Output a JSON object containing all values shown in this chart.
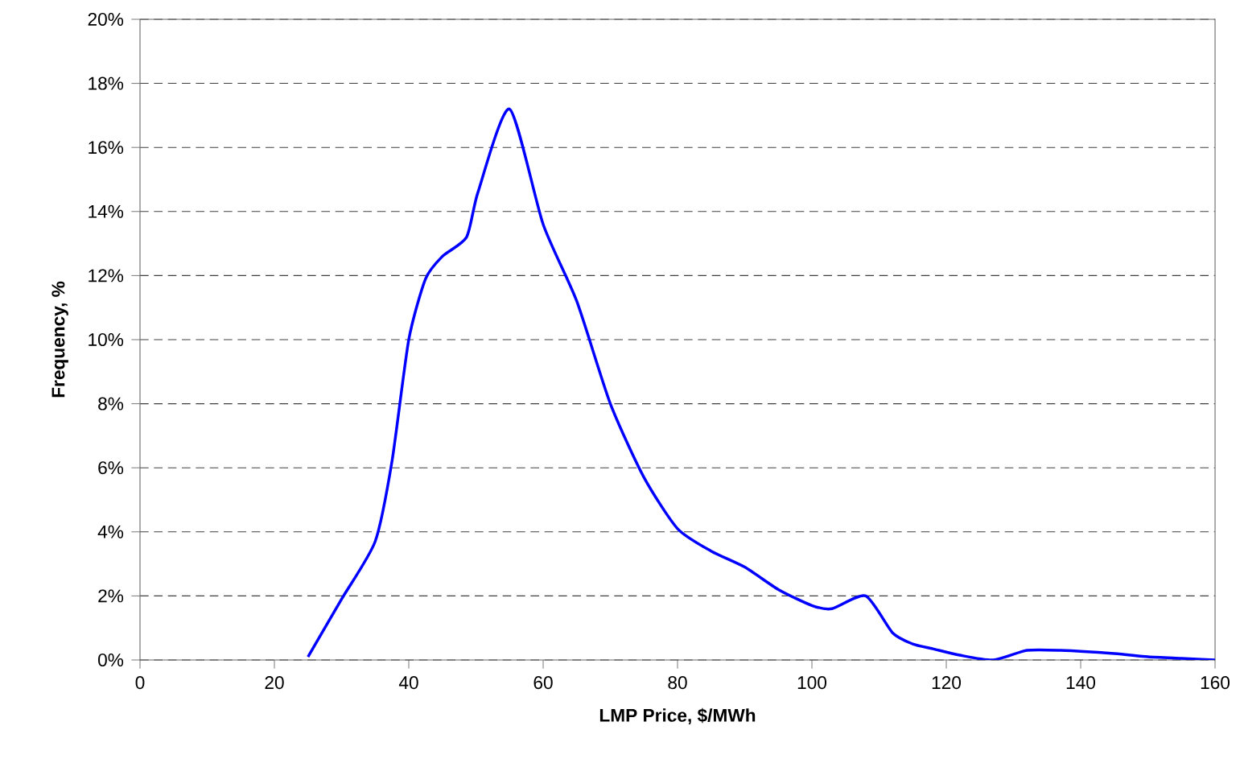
{
  "chart_data": {
    "type": "line",
    "xlabel": "LMP Price, $/MWh",
    "ylabel": "Frequency, %",
    "series": [
      {
        "color": "#0000ff",
        "x": [
          25,
          30,
          35,
          37.5,
          40,
          42.5,
          45,
          48.6,
          50.3,
          55,
          60,
          65,
          70,
          75,
          80,
          85,
          90,
          95,
          100,
          103,
          108,
          112,
          115,
          118,
          122,
          127,
          132,
          137,
          145,
          150,
          155,
          160
        ],
        "values": [
          0.1,
          1.9,
          3.7,
          6.2,
          10,
          11.9,
          12.6,
          13.2,
          14.6,
          17.2,
          13.6,
          11.2,
          8.0,
          5.7,
          4.1,
          3.4,
          2.9,
          2.2,
          1.7,
          1.6,
          2.0,
          0.85,
          0.5,
          0.35,
          0.15,
          0,
          0.3,
          0.3,
          0.2,
          0.1,
          0.05,
          0
        ]
      }
    ],
    "xlim": [
      0,
      160
    ],
    "xticks": [
      0,
      20,
      40,
      60,
      80,
      100,
      120,
      140,
      160
    ],
    "ylim": [
      0,
      20
    ],
    "yticks": [
      {
        "value": 0,
        "label": "0%"
      },
      {
        "value": 2,
        "label": "2%"
      },
      {
        "value": 4,
        "label": "4%"
      },
      {
        "value": 6,
        "label": "6%"
      },
      {
        "value": 8,
        "label": "8%"
      },
      {
        "value": 10,
        "label": "10%"
      },
      {
        "value": 12,
        "label": "12%"
      },
      {
        "value": 14,
        "label": "14%"
      },
      {
        "value": 16,
        "label": "16%"
      },
      {
        "value": 18,
        "label": "18%"
      },
      {
        "value": 20,
        "label": "20%"
      }
    ],
    "grid": "y",
    "marker": "none",
    "line_style": "solid"
  }
}
